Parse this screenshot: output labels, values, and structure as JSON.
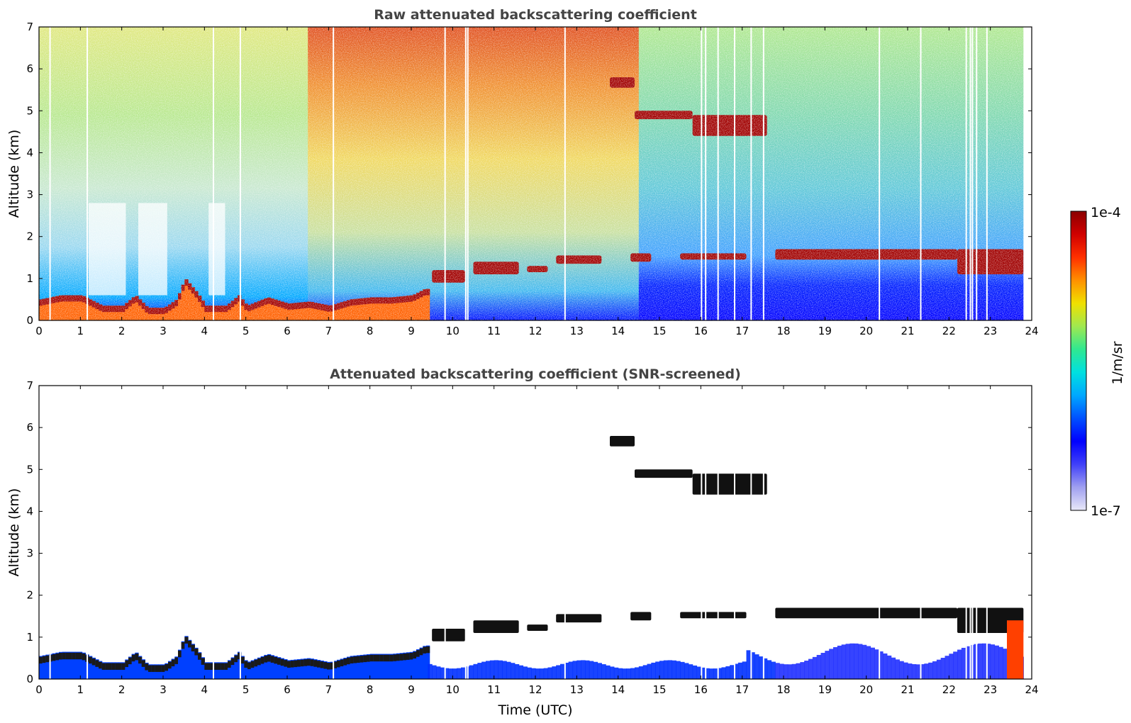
{
  "chart_data": [
    {
      "type": "heatmap",
      "title": "Raw attenuated backscattering coefficient",
      "xlabel": "",
      "ylabel": "Altitude (km)",
      "xlim": [
        0,
        24
      ],
      "ylim": [
        0,
        7
      ],
      "xticks": [
        "0",
        "1",
        "2",
        "3",
        "4",
        "5",
        "6",
        "7",
        "8",
        "9",
        "10",
        "11",
        "12",
        "13",
        "14",
        "15",
        "16",
        "17",
        "18",
        "19",
        "20",
        "21",
        "22",
        "23",
        "24"
      ],
      "yticks": [
        "0",
        "1",
        "2",
        "3",
        "4",
        "5",
        "6",
        "7"
      ],
      "boundary_layer_top_km": [
        [
          0.0,
          0.45
        ],
        [
          0.5,
          0.55
        ],
        [
          1.0,
          0.55
        ],
        [
          1.5,
          0.3
        ],
        [
          2.0,
          0.3
        ],
        [
          2.3,
          0.55
        ],
        [
          2.6,
          0.25
        ],
        [
          3.0,
          0.25
        ],
        [
          3.3,
          0.45
        ],
        [
          3.5,
          0.95
        ],
        [
          3.8,
          0.6
        ],
        [
          4.0,
          0.3
        ],
        [
          4.5,
          0.3
        ],
        [
          4.8,
          0.55
        ],
        [
          5.0,
          0.3
        ],
        [
          5.5,
          0.5
        ],
        [
          6.0,
          0.35
        ],
        [
          6.5,
          0.4
        ],
        [
          7.0,
          0.3
        ],
        [
          7.5,
          0.45
        ],
        [
          8.0,
          0.5
        ],
        [
          8.5,
          0.5
        ],
        [
          9.0,
          0.55
        ],
        [
          9.3,
          0.7
        ]
      ],
      "cloud_layers_km": [
        {
          "x_start": 9.5,
          "x_end": 10.3,
          "base": 0.9,
          "top": 1.2
        },
        {
          "x_start": 10.5,
          "x_end": 11.6,
          "base": 1.1,
          "top": 1.4
        },
        {
          "x_start": 11.8,
          "x_end": 12.3,
          "base": 1.15,
          "top": 1.3
        },
        {
          "x_start": 12.5,
          "x_end": 13.6,
          "base": 1.35,
          "top": 1.55
        },
        {
          "x_start": 14.3,
          "x_end": 14.8,
          "base": 1.4,
          "top": 1.6
        },
        {
          "x_start": 15.5,
          "x_end": 17.1,
          "base": 1.45,
          "top": 1.6
        },
        {
          "x_start": 17.8,
          "x_end": 22.2,
          "base": 1.45,
          "top": 1.7
        },
        {
          "x_start": 22.2,
          "x_end": 23.8,
          "base": 1.1,
          "top": 1.7
        },
        {
          "x_start": 13.8,
          "x_end": 14.4,
          "base": 5.55,
          "top": 5.8
        },
        {
          "x_start": 14.4,
          "x_end": 15.8,
          "base": 4.8,
          "top": 5.0
        },
        {
          "x_start": 15.8,
          "x_end": 17.6,
          "base": 4.4,
          "top": 4.9
        }
      ],
      "missing_profiles_h": [
        0.25,
        1.15,
        4.2,
        4.85,
        7.1,
        9.8,
        10.3,
        10.35,
        12.7,
        16.0,
        16.1,
        16.4,
        16.8,
        17.2,
        17.5,
        20.3,
        21.3,
        22.4,
        22.5,
        22.55,
        22.65,
        22.9
      ]
    },
    {
      "type": "heatmap",
      "title": "Attenuated backscattering coefficient (SNR-screened)",
      "xlabel": "Time (UTC)",
      "ylabel": "Altitude (km)",
      "xlim": [
        0,
        24
      ],
      "ylim": [
        0,
        7
      ],
      "xticks": [
        "0",
        "1",
        "2",
        "3",
        "4",
        "5",
        "6",
        "7",
        "8",
        "9",
        "10",
        "11",
        "12",
        "13",
        "14",
        "15",
        "16",
        "17",
        "18",
        "19",
        "20",
        "21",
        "22",
        "23",
        "24"
      ],
      "yticks": [
        "0",
        "1",
        "2",
        "3",
        "4",
        "5",
        "6",
        "7"
      ]
    }
  ],
  "colorbar": {
    "label": "1/m/sr",
    "max_label": "1e-4",
    "min_label": "1e-7",
    "colors": [
      "#e8e8f8",
      "#a0a0f0",
      "#4040f8",
      "#0000ff",
      "#0050ff",
      "#00a8ff",
      "#00e0e0",
      "#30e890",
      "#a0e850",
      "#f0e000",
      "#ff9000",
      "#ff3000",
      "#d00000",
      "#8b0000"
    ]
  }
}
